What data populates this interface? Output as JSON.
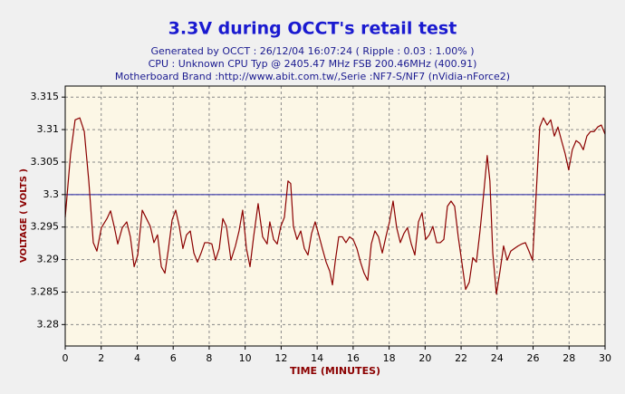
{
  "chart_data": {
    "type": "line",
    "title": "3.3V during OCCT's retail test",
    "subtitle": [
      "Generated by OCCT : 26/12/04 16:07:24 ( Ripple : 0.03 : 1.00% )",
      "CPU : Unknown CPU Typ @ 2405.47 MHz FSB 200.46MHz (400.91)",
      "Motherboard Brand :http://www.abit.com.tw/,Serie :NF7-S/NF7 (nVidia-nForce2)"
    ],
    "xlabel": "TIME (MINUTES)",
    "ylabel": "VOLTAGE ( VOLTS )",
    "xlim": [
      0,
      30
    ],
    "ylim": [
      3.2767,
      3.3167
    ],
    "xticks": [
      0,
      2,
      4,
      6,
      8,
      10,
      12,
      14,
      16,
      18,
      20,
      22,
      24,
      26,
      28,
      30
    ],
    "yticks": [
      3.28,
      3.285,
      3.29,
      3.295,
      3.3,
      3.305,
      3.31,
      3.315
    ],
    "grid": true,
    "reference_line": {
      "value": 3.3,
      "color": "#1a1aa0"
    },
    "series": [
      {
        "name": "3.3V",
        "color": "#8b0000",
        "x": [
          0,
          0.3,
          0.55,
          0.81,
          1.06,
          1.31,
          1.56,
          1.76,
          2.01,
          2.32,
          2.52,
          2.72,
          2.92,
          3.17,
          3.42,
          3.62,
          3.83,
          4.03,
          4.28,
          4.48,
          4.73,
          4.93,
          5.13,
          5.34,
          5.54,
          5.74,
          5.94,
          6.14,
          6.34,
          6.54,
          6.74,
          6.95,
          7.15,
          7.35,
          7.55,
          7.75,
          7.95,
          8.15,
          8.35,
          8.56,
          8.76,
          8.96,
          9.21,
          9.46,
          9.66,
          9.86,
          10.07,
          10.27,
          10.47,
          10.72,
          10.97,
          11.22,
          11.37,
          11.58,
          11.78,
          11.98,
          12.18,
          12.38,
          12.53,
          12.68,
          12.88,
          13.09,
          13.29,
          13.49,
          13.69,
          13.89,
          14.09,
          14.29,
          14.5,
          14.7,
          14.85,
          15,
          15.2,
          15.4,
          15.6,
          15.8,
          16,
          16.21,
          16.41,
          16.61,
          16.81,
          17.01,
          17.21,
          17.41,
          17.62,
          17.82,
          18.02,
          18.22,
          18.42,
          18.62,
          18.82,
          19.02,
          19.23,
          19.43,
          19.63,
          19.83,
          20.03,
          20.23,
          20.43,
          20.64,
          20.84,
          21.04,
          21.24,
          21.44,
          21.64,
          21.84,
          22.04,
          22.25,
          22.45,
          22.65,
          22.85,
          23.05,
          23.25,
          23.45,
          23.6,
          23.76,
          23.96,
          24.16,
          24.36,
          24.56,
          24.76,
          24.96,
          25.17,
          25.37,
          25.57,
          25.77,
          25.97,
          26.17,
          26.37,
          26.57,
          26.78,
          26.98,
          27.18,
          27.38,
          27.58,
          27.78,
          27.98,
          28.18,
          28.39,
          28.59,
          28.79,
          28.99,
          29.19,
          29.39,
          29.59,
          29.79,
          30
        ],
        "values": [
          3.2965,
          3.3063,
          3.3115,
          3.3118,
          3.3097,
          3.3021,
          3.2926,
          3.2913,
          3.2949,
          3.2963,
          3.2975,
          3.2951,
          3.2924,
          3.2949,
          3.2958,
          3.2935,
          3.2889,
          3.2907,
          3.2976,
          3.2965,
          3.2951,
          3.2926,
          3.2938,
          3.2889,
          3.2879,
          3.2917,
          3.2961,
          3.2976,
          3.2951,
          3.2917,
          3.2938,
          3.2944,
          3.291,
          3.2896,
          3.291,
          3.2926,
          3.2926,
          3.2924,
          3.2899,
          3.2917,
          3.2963,
          3.2951,
          3.2899,
          3.2921,
          3.2944,
          3.2976,
          3.2917,
          3.2889,
          3.2935,
          3.2986,
          3.2935,
          3.2924,
          3.2958,
          3.2931,
          3.2924,
          3.2951,
          3.2965,
          3.3021,
          3.3017,
          3.2951,
          3.2931,
          3.2944,
          3.2917,
          3.2907,
          3.294,
          3.2958,
          3.2938,
          3.2917,
          3.2896,
          3.2882,
          3.2861,
          3.2896,
          3.2935,
          3.2935,
          3.2926,
          3.2935,
          3.2931,
          3.2917,
          3.2896,
          3.2879,
          3.2868,
          3.2924,
          3.2944,
          3.2935,
          3.291,
          3.2935,
          3.2958,
          3.299,
          3.2949,
          3.2926,
          3.294,
          3.2949,
          3.2924,
          3.2907,
          3.2958,
          3.2972,
          3.2931,
          3.2938,
          3.2951,
          3.2926,
          3.2926,
          3.2931,
          3.2982,
          3.299,
          3.2982,
          3.2935,
          3.2896,
          3.2854,
          3.2865,
          3.2903,
          3.2896,
          3.2944,
          3.3,
          3.306,
          3.3021,
          3.291,
          3.2847,
          3.2882,
          3.2921,
          3.2899,
          3.2913,
          3.2917,
          3.2921,
          3.2924,
          3.2926,
          3.2913,
          3.2899,
          3.3,
          3.3104,
          3.3118,
          3.3107,
          3.3115,
          3.309,
          3.3104,
          3.3083,
          3.3063,
          3.3038,
          3.3069,
          3.3083,
          3.3079,
          3.3069,
          3.309,
          3.3097,
          3.3097,
          3.3104,
          3.3107,
          3.3093
        ]
      }
    ]
  }
}
